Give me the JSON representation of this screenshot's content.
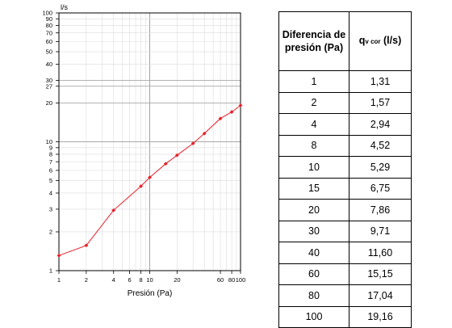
{
  "chart_data": {
    "type": "line",
    "xscale": "log",
    "yscale": "log",
    "xlabel": "Presión (Pa)",
    "ylabel": "l/s",
    "xlim": [
      1,
      100
    ],
    "ylim": [
      1,
      100
    ],
    "xticks": [
      1,
      2,
      4,
      6,
      8,
      10,
      20,
      60,
      80,
      100
    ],
    "xtick_labels": [
      "1",
      "2",
      "4",
      "6",
      "8",
      "10",
      "20",
      "60",
      "80",
      "100"
    ],
    "yticks": [
      1,
      2,
      3,
      4,
      5,
      6,
      7,
      8,
      9,
      10,
      20,
      27,
      30,
      40,
      50,
      60,
      70,
      80,
      90,
      100
    ],
    "ytick_labels": [
      "1",
      "2",
      "3",
      "4",
      "5",
      "6",
      "7",
      "8",
      "9",
      "10",
      "20",
      "27",
      "30",
      "40",
      "50",
      "60",
      "70",
      "80",
      "90",
      "100"
    ],
    "grid": true,
    "series": [
      {
        "color": "#e8202a",
        "x": [
          1,
          2,
          4,
          8,
          10,
          15,
          20,
          30,
          40,
          60,
          80,
          100
        ],
        "y": [
          1.31,
          1.57,
          2.94,
          4.52,
          5.29,
          6.75,
          7.86,
          9.71,
          11.6,
          15.15,
          17.04,
          19.16
        ]
      }
    ]
  },
  "table": {
    "header_pressure": "Diferencia de presión (Pa)",
    "header_flow_main": "q",
    "header_flow_sub": "v cor",
    "header_flow_unit": " (l/s)",
    "rows": [
      {
        "p": "1",
        "q": "1,31"
      },
      {
        "p": "2",
        "q": "1,57"
      },
      {
        "p": "4",
        "q": "2,94"
      },
      {
        "p": "8",
        "q": "4,52"
      },
      {
        "p": "10",
        "q": "5,29"
      },
      {
        "p": "15",
        "q": "6,75"
      },
      {
        "p": "20",
        "q": "7,86"
      },
      {
        "p": "30",
        "q": "9,71"
      },
      {
        "p": "40",
        "q": "11,60"
      },
      {
        "p": "60",
        "q": "15,15"
      },
      {
        "p": "80",
        "q": "17,04"
      },
      {
        "p": "100",
        "q": "19,16"
      }
    ]
  }
}
